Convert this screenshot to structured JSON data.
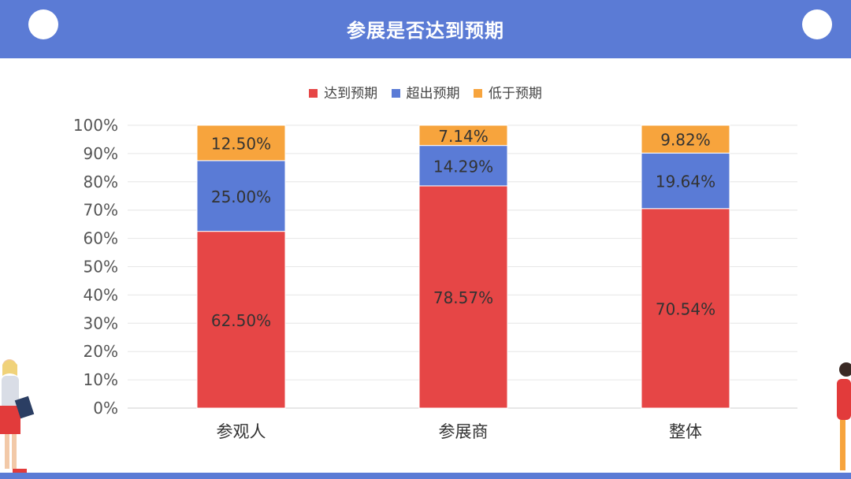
{
  "header": {
    "title": "参展是否达到预期"
  },
  "colors": {
    "达到预期": "#e64646",
    "超出预期": "#5a7bd6",
    "低于预期": "#f7a43d",
    "frame": "#5b7bd5"
  },
  "chart_data": {
    "type": "bar",
    "stacked": true,
    "title": "",
    "categories": [
      "参观人",
      "参展商",
      "整体"
    ],
    "series": [
      {
        "name": "达到预期",
        "values": [
          62.5,
          78.57,
          70.54
        ]
      },
      {
        "name": "超出预期",
        "values": [
          25.0,
          14.29,
          19.64
        ]
      },
      {
        "name": "低于预期",
        "values": [
          12.5,
          7.14,
          9.82
        ]
      }
    ],
    "data_labels": [
      [
        "62.50%",
        "78.57%",
        "70.54%"
      ],
      [
        "25.00%",
        "14.29%",
        "19.64%"
      ],
      [
        "12.50%",
        "7.14%",
        "9.82%"
      ]
    ],
    "yticks": [
      "0%",
      "10%",
      "20%",
      "30%",
      "40%",
      "50%",
      "60%",
      "70%",
      "80%",
      "90%",
      "100%"
    ],
    "ylim": [
      0,
      100
    ],
    "grid": true,
    "legend_position": "top"
  }
}
